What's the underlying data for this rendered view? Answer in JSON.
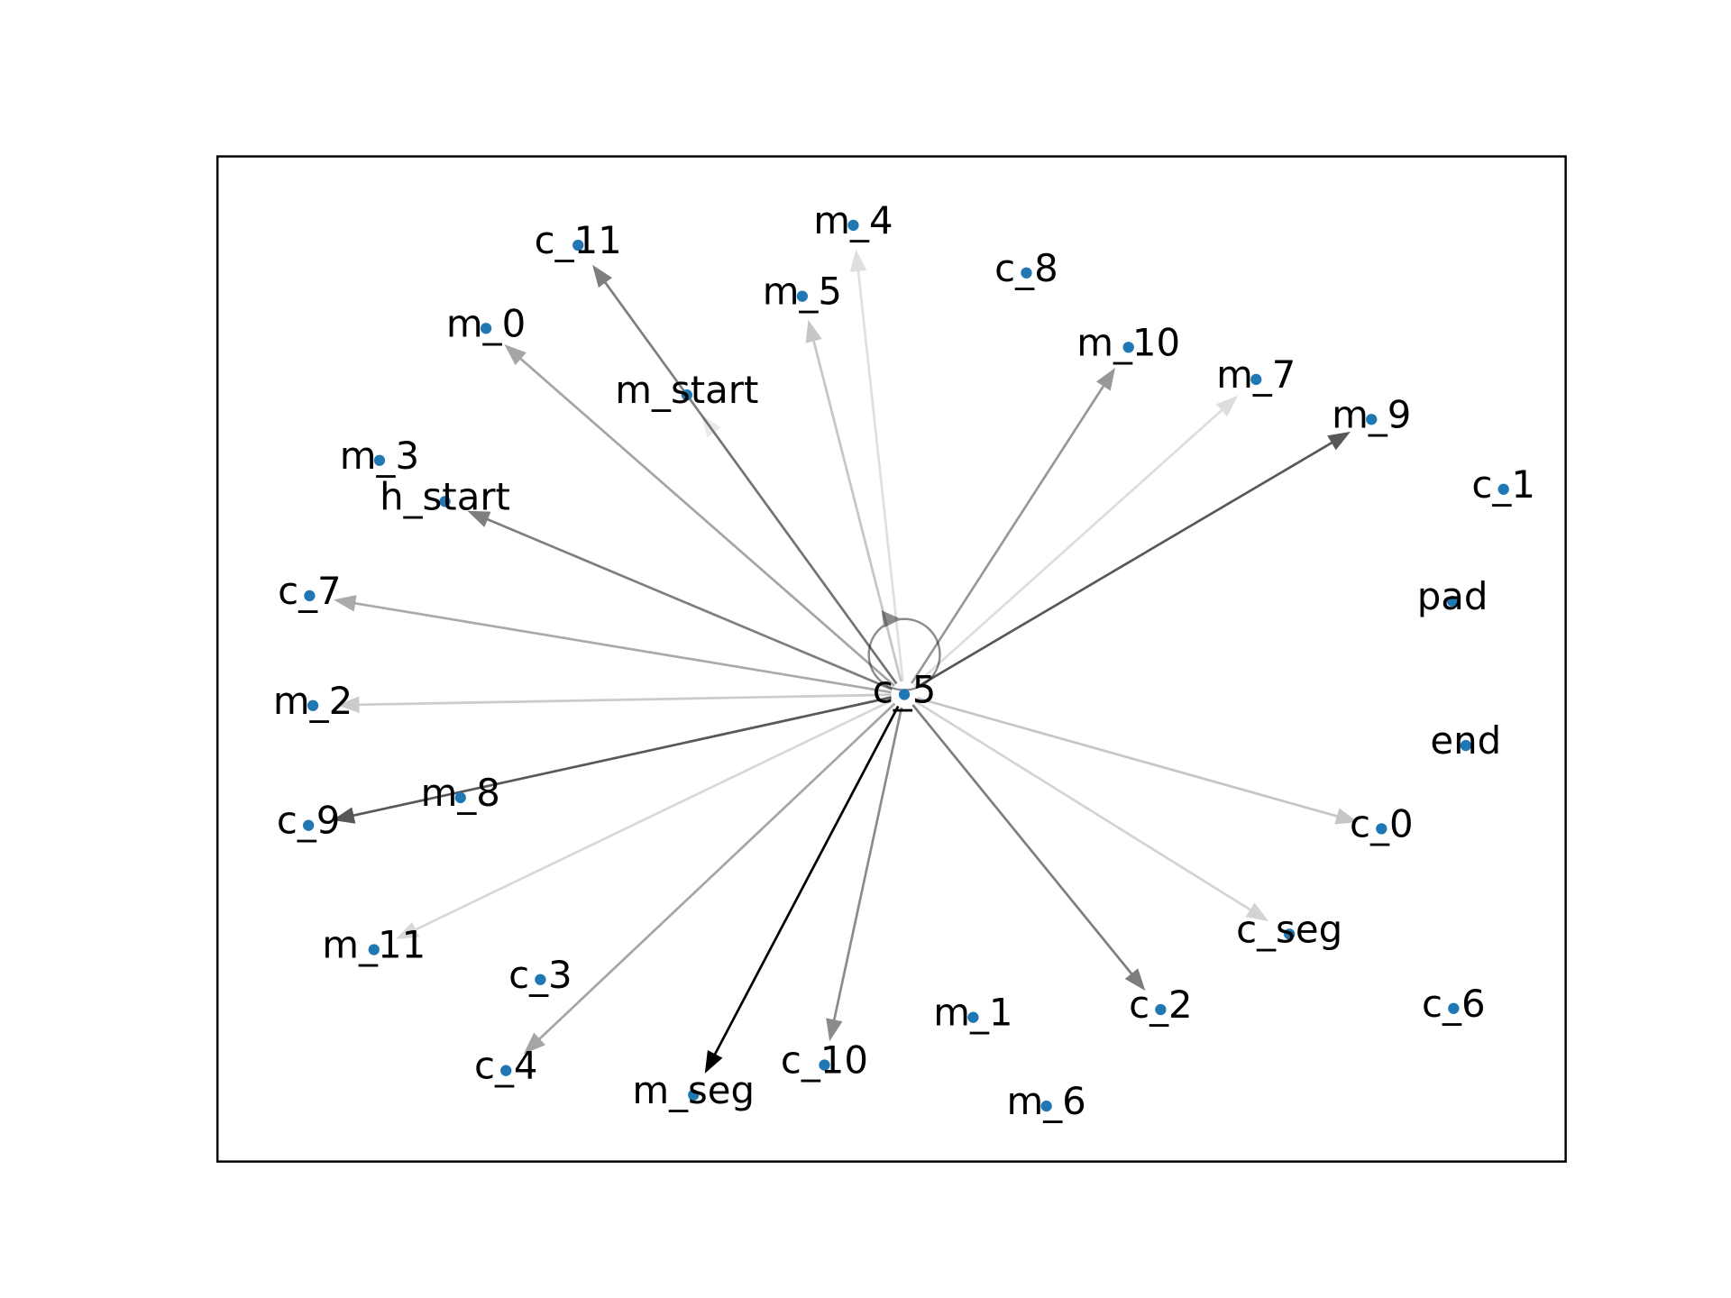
{
  "nodes": [
    {
      "label": "c_11"
    },
    {
      "label": "m_4"
    },
    {
      "label": "c_8"
    },
    {
      "label": "m_5"
    },
    {
      "label": "m_0"
    },
    {
      "label": "m_10"
    },
    {
      "label": "m_7"
    },
    {
      "label": "m_start"
    },
    {
      "label": "m_9"
    },
    {
      "label": "m_3"
    },
    {
      "label": "h_start"
    },
    {
      "label": "c_1"
    },
    {
      "label": "c_7"
    },
    {
      "label": "pad"
    },
    {
      "label": "c_5"
    },
    {
      "label": "m_2"
    },
    {
      "label": "end"
    },
    {
      "label": "m_8"
    },
    {
      "label": "c_9"
    },
    {
      "label": "c_0"
    },
    {
      "label": "m_11"
    },
    {
      "label": "c_seg"
    },
    {
      "label": "c_3"
    },
    {
      "label": "c_2"
    },
    {
      "label": "c_6"
    },
    {
      "label": "m_1"
    },
    {
      "label": "c_4"
    },
    {
      "label": "c_10"
    },
    {
      "label": "m_seg"
    },
    {
      "label": "m_6"
    }
  ],
  "node_color": "#1f77b4",
  "edge_color": "#000000",
  "edges": [
    {
      "from": "c_5",
      "to": "c_11",
      "alpha": 0.5
    },
    {
      "from": "c_5",
      "to": "m_4",
      "alpha": 0.12
    },
    {
      "from": "c_5",
      "to": "m_5",
      "alpha": 0.22
    },
    {
      "from": "c_5",
      "to": "m_0",
      "alpha": 0.35
    },
    {
      "from": "c_5",
      "to": "m_start",
      "alpha": 0.08
    },
    {
      "from": "c_5",
      "to": "h_start",
      "alpha": 0.5
    },
    {
      "from": "c_5",
      "to": "c_7",
      "alpha": 0.33
    },
    {
      "from": "c_5",
      "to": "m_2",
      "alpha": 0.2
    },
    {
      "from": "c_5",
      "to": "c_9",
      "alpha": 0.65
    },
    {
      "from": "c_5",
      "to": "m_11",
      "alpha": 0.15
    },
    {
      "from": "c_5",
      "to": "c_4",
      "alpha": 0.35
    },
    {
      "from": "c_5",
      "to": "m_seg",
      "alpha": 1.0
    },
    {
      "from": "c_5",
      "to": "c_10",
      "alpha": 0.45
    },
    {
      "from": "c_5",
      "to": "c_2",
      "alpha": 0.5
    },
    {
      "from": "c_5",
      "to": "c_seg",
      "alpha": 0.17
    },
    {
      "from": "c_5",
      "to": "c_0",
      "alpha": 0.22
    },
    {
      "from": "c_5",
      "to": "m_9",
      "alpha": 0.65
    },
    {
      "from": "c_5",
      "to": "m_7",
      "alpha": 0.13
    },
    {
      "from": "c_5",
      "to": "m_10",
      "alpha": 0.4
    },
    {
      "from": "c_5",
      "to": "c_5",
      "alpha": 0.45
    }
  ]
}
